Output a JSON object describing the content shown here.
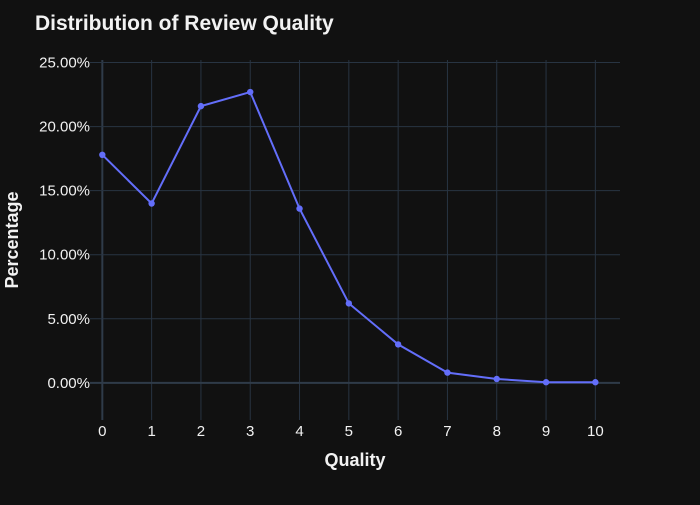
{
  "chart_data": {
    "type": "line",
    "title": "Distribution of Review Quality",
    "xlabel": "Quality",
    "ylabel": "Percentage",
    "x": [
      0,
      1,
      2,
      3,
      4,
      5,
      6,
      7,
      8,
      9,
      10
    ],
    "x_tick_labels": [
      "0",
      "1",
      "2",
      "3",
      "4",
      "5",
      "6",
      "7",
      "8",
      "9",
      "10"
    ],
    "xlim": [
      -0.25,
      10.5
    ],
    "ylim": [
      -2.9,
      25.2
    ],
    "y_ticks": [
      0,
      5,
      10,
      15,
      20,
      25
    ],
    "y_tick_labels": [
      "0.00%",
      "5.00%",
      "10.00%",
      "15.00%",
      "20.00%",
      "25.00%"
    ],
    "series": [
      {
        "values": [
          17.8,
          14.0,
          21.6,
          22.7,
          13.6,
          6.2,
          3.0,
          0.8,
          0.3,
          0.05,
          0.05
        ],
        "color": "#636efa",
        "mode": "lines+markers"
      }
    ],
    "grid": true,
    "background_color": "#111111",
    "grid_color": "#283442",
    "text_color": "#f2f2f2"
  }
}
